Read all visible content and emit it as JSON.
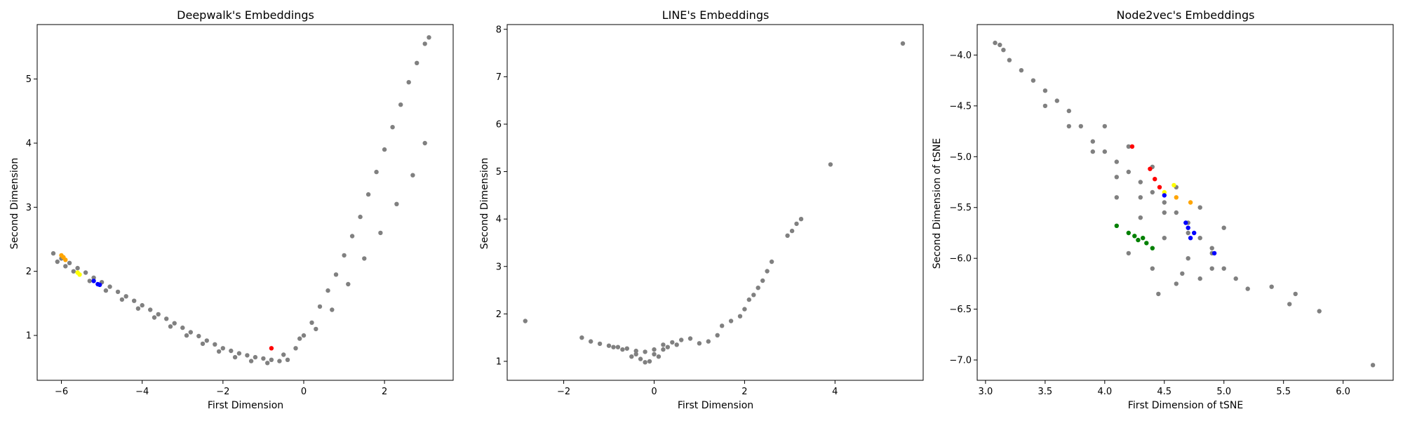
{
  "chart_data": [
    {
      "type": "scatter",
      "title": "Deepwalk's Embeddings",
      "xlabel": "First Dimension",
      "ylabel": "Second Dimension",
      "xlim": [
        -6.6,
        3.7
      ],
      "ylim": [
        0.3,
        5.85
      ],
      "xticks": [
        -6,
        -4,
        -2,
        0,
        2
      ],
      "yticks": [
        1,
        2,
        3,
        4,
        5
      ],
      "xtick_labels": [
        "−6",
        "−4",
        "−2",
        "0",
        "2"
      ],
      "ytick_labels": [
        "1",
        "2",
        "3",
        "4",
        "5"
      ],
      "grid": false,
      "point_color": "#808080",
      "highlight_colors": [
        "#ff0000",
        "#0000ff",
        "#ffff00",
        "#ffa500",
        "#008000"
      ],
      "series": [
        {
          "color": "#808080",
          "x": [
            -6.2,
            -6.0,
            -5.8,
            -5.6,
            -5.4,
            -5.2,
            -5.0,
            -4.8,
            -4.6,
            -4.4,
            -4.2,
            -4.0,
            -3.8,
            -3.6,
            -3.4,
            -3.2,
            -3.0,
            -2.8,
            -2.6,
            -2.4,
            -2.2,
            -2.0,
            -1.8,
            -1.6,
            -1.4,
            -1.2,
            -1.0,
            -0.8,
            -0.6,
            -0.4,
            -0.2,
            0.0,
            0.2,
            0.4,
            0.6,
            0.8,
            1.0,
            1.2,
            1.4,
            1.6,
            1.8,
            2.0,
            2.2,
            2.4,
            2.6,
            2.8,
            3.0,
            3.1,
            -6.1,
            -5.9,
            -5.7,
            -5.3,
            -4.9,
            -4.5,
            -4.1,
            -3.7,
            -3.3,
            -2.9,
            -2.5,
            -2.1,
            -1.7,
            -1.3,
            -0.9,
            -0.5,
            -0.1,
            0.3,
            0.7,
            1.1,
            1.5,
            1.9,
            2.3,
            2.7,
            3.0
          ],
          "y": [
            2.28,
            2.2,
            2.13,
            2.05,
            1.98,
            1.9,
            1.83,
            1.76,
            1.68,
            1.61,
            1.54,
            1.47,
            1.4,
            1.33,
            1.26,
            1.19,
            1.12,
            1.05,
            0.99,
            0.92,
            0.86,
            0.8,
            0.76,
            0.72,
            0.69,
            0.66,
            0.64,
            0.62,
            0.6,
            0.62,
            0.8,
            1.0,
            1.2,
            1.45,
            1.7,
            1.95,
            2.25,
            2.55,
            2.85,
            3.2,
            3.55,
            3.9,
            4.25,
            4.6,
            4.95,
            5.25,
            5.55,
            5.65,
            2.15,
            2.08,
            2.0,
            1.85,
            1.7,
            1.56,
            1.42,
            1.28,
            1.14,
            1.0,
            0.87,
            0.75,
            0.66,
            0.6,
            0.57,
            0.7,
            0.95,
            1.1,
            1.4,
            1.8,
            2.2,
            2.6,
            3.05,
            3.5,
            4.0
          ]
        },
        {
          "color": "#ffa500",
          "x": [
            -6.0,
            -5.9,
            -5.95
          ],
          "y": [
            2.25,
            2.18,
            2.22
          ]
        },
        {
          "color": "#ffff00",
          "x": [
            -5.6,
            -5.55
          ],
          "y": [
            1.98,
            1.95
          ]
        },
        {
          "color": "#0000ff",
          "x": [
            -5.2,
            -5.1,
            -5.05
          ],
          "y": [
            1.85,
            1.8,
            1.79
          ]
        },
        {
          "color": "#ff0000",
          "x": [
            -0.8
          ],
          "y": [
            0.8
          ]
        }
      ]
    },
    {
      "type": "scatter",
      "title": "LINE's Embeddings",
      "xlabel": "First Dimension",
      "ylabel": "Second Dimension",
      "xlim": [
        -3.25,
        5.95
      ],
      "ylim": [
        0.6,
        8.1
      ],
      "xticks": [
        -2,
        0,
        2,
        4
      ],
      "yticks": [
        1,
        2,
        3,
        4,
        5,
        6,
        7,
        8
      ],
      "xtick_labels": [
        "−2",
        "0",
        "2",
        "4"
      ],
      "ytick_labels": [
        "1",
        "2",
        "3",
        "4",
        "5",
        "6",
        "7",
        "8"
      ],
      "grid": false,
      "point_color": "#808080",
      "series": [
        {
          "color": "#808080",
          "x": [
            -2.85,
            -1.6,
            -1.4,
            -1.2,
            -1.0,
            -0.8,
            -0.6,
            -0.4,
            -0.2,
            0.0,
            0.2,
            0.4,
            0.6,
            0.8,
            1.0,
            1.2,
            1.4,
            1.5,
            1.7,
            1.9,
            2.0,
            2.1,
            2.2,
            2.3,
            2.4,
            2.5,
            2.6,
            2.95,
            3.05,
            3.15,
            3.25,
            3.9,
            5.5,
            -0.5,
            -0.3,
            -0.1,
            0.1,
            -0.7,
            -0.9,
            0.3,
            0.5,
            -0.2,
            0.0,
            -0.4,
            0.2
          ],
          "y": [
            1.85,
            1.5,
            1.42,
            1.37,
            1.33,
            1.3,
            1.27,
            1.22,
            1.2,
            1.25,
            1.35,
            1.4,
            1.45,
            1.48,
            1.38,
            1.42,
            1.55,
            1.75,
            1.85,
            1.95,
            2.1,
            2.3,
            2.4,
            2.55,
            2.7,
            2.9,
            3.1,
            3.65,
            3.75,
            3.9,
            4.0,
            5.15,
            7.7,
            1.1,
            1.05,
            1.0,
            1.1,
            1.25,
            1.3,
            1.3,
            1.35,
            0.98,
            1.15,
            1.15,
            1.25
          ]
        }
      ]
    },
    {
      "type": "scatter",
      "title": "Node2vec's Embeddings",
      "xlabel": "First Dimension of tSNE",
      "ylabel": "Second Dimension of tSNE",
      "xlim": [
        2.93,
        6.42
      ],
      "ylim": [
        -7.2,
        -3.7
      ],
      "xticks": [
        3.0,
        3.5,
        4.0,
        4.5,
        5.0,
        5.5,
        6.0
      ],
      "yticks": [
        -4.0,
        -4.5,
        -5.0,
        -5.5,
        -6.0,
        -6.5,
        -7.0
      ],
      "xtick_labels": [
        "3.0",
        "3.5",
        "4.0",
        "4.5",
        "5.0",
        "5.5",
        "6.0"
      ],
      "ytick_labels": [
        "−4.0",
        "−4.5",
        "−5.0",
        "−5.5",
        "−6.0",
        "−6.5",
        "−7.0"
      ],
      "grid": false,
      "point_color": "#808080",
      "series": [
        {
          "color": "#808080",
          "x": [
            3.08,
            3.12,
            3.15,
            3.2,
            3.3,
            3.4,
            3.5,
            3.6,
            3.7,
            3.8,
            3.9,
            4.0,
            4.1,
            4.2,
            4.3,
            4.4,
            4.5,
            4.6,
            4.7,
            4.8,
            4.9,
            5.0,
            5.1,
            5.2,
            3.5,
            3.7,
            3.9,
            4.1,
            4.3,
            4.5,
            4.7,
            4.9,
            4.0,
            4.2,
            4.4,
            4.6,
            4.8,
            5.0,
            4.1,
            4.3,
            4.5,
            4.7,
            4.9,
            4.2,
            4.4,
            4.6,
            4.8,
            5.4,
            5.6,
            5.8,
            5.55,
            6.25,
            4.45,
            4.65
          ],
          "y": [
            -3.88,
            -3.9,
            -3.95,
            -4.05,
            -4.15,
            -4.25,
            -4.35,
            -4.45,
            -4.55,
            -4.7,
            -4.85,
            -4.95,
            -5.05,
            -5.15,
            -5.25,
            -5.35,
            -5.45,
            -5.55,
            -5.65,
            -5.8,
            -5.95,
            -6.1,
            -6.2,
            -6.3,
            -4.5,
            -4.7,
            -4.95,
            -5.2,
            -5.4,
            -5.55,
            -5.75,
            -5.9,
            -4.7,
            -4.9,
            -5.1,
            -5.3,
            -5.5,
            -5.7,
            -5.4,
            -5.6,
            -5.8,
            -6.0,
            -6.1,
            -5.95,
            -6.1,
            -6.25,
            -6.2,
            -6.28,
            -6.35,
            -6.52,
            -6.45,
            -7.05,
            -6.35,
            -6.15
          ]
        },
        {
          "color": "#ff0000",
          "x": [
            4.23,
            4.38,
            4.42,
            4.46
          ],
          "y": [
            -4.9,
            -5.12,
            -5.22,
            -5.3
          ]
        },
        {
          "color": "#ffff00",
          "x": [
            4.5,
            4.58
          ],
          "y": [
            -5.35,
            -5.28
          ]
        },
        {
          "color": "#ffa500",
          "x": [
            4.72,
            4.6
          ],
          "y": [
            -5.45,
            -5.4
          ]
        },
        {
          "color": "#0000ff",
          "x": [
            4.5,
            4.68,
            4.7,
            4.75,
            4.72,
            4.92
          ],
          "y": [
            -5.38,
            -5.65,
            -5.7,
            -5.75,
            -5.8,
            -5.95
          ]
        },
        {
          "color": "#008000",
          "x": [
            4.1,
            4.2,
            4.25,
            4.28,
            4.32,
            4.35,
            4.4
          ],
          "y": [
            -5.68,
            -5.75,
            -5.78,
            -5.82,
            -5.8,
            -5.85,
            -5.9
          ]
        }
      ]
    }
  ]
}
